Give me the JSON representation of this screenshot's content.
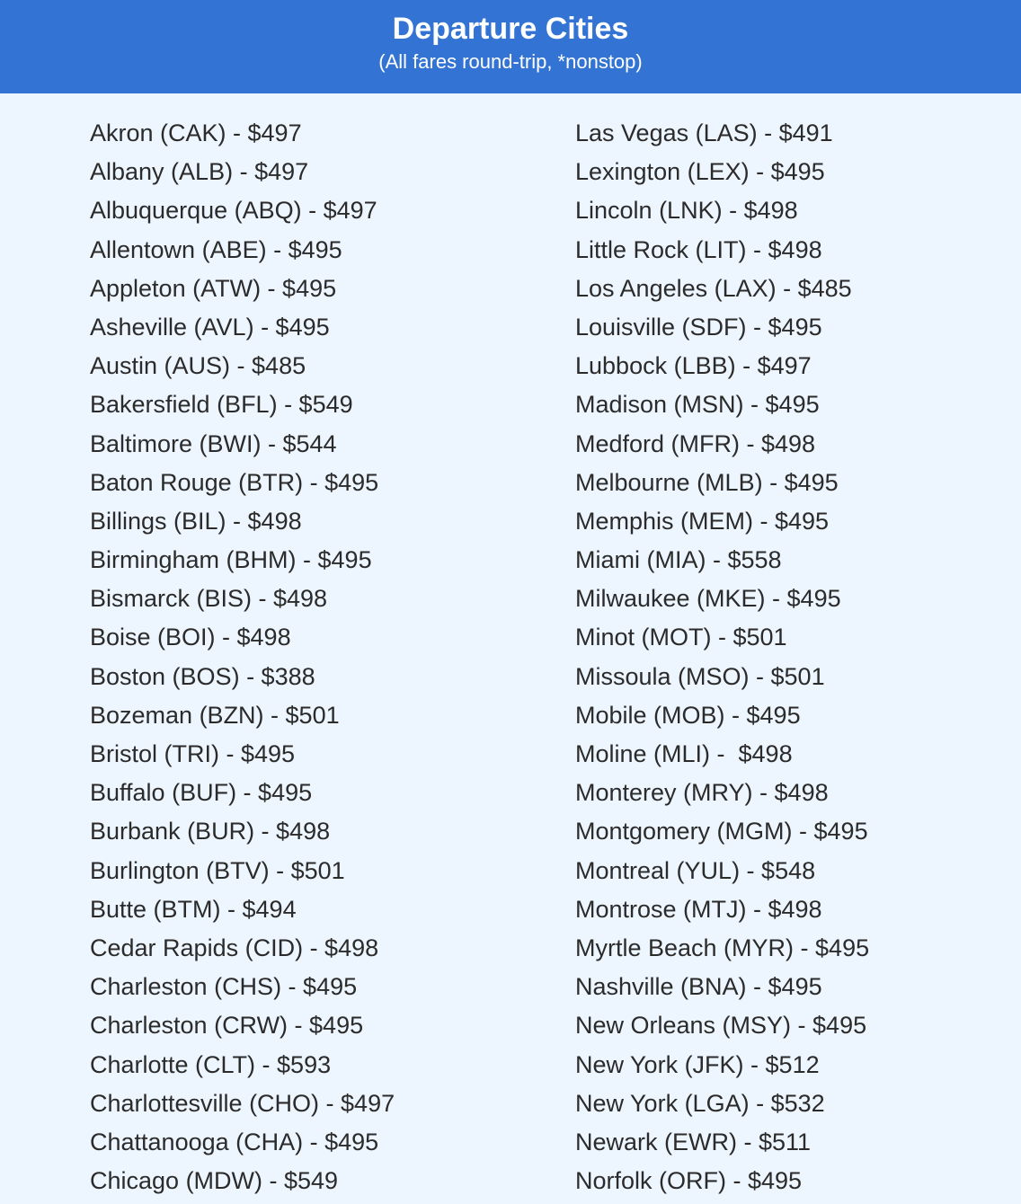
{
  "header": {
    "title": "Departure Cities",
    "subtitle": "(All fares round-trip, *nonstop)"
  },
  "colors": {
    "header_bg": "#3273d3",
    "page_bg": "#edf5fe"
  },
  "left_column": [
    "Akron (CAK) - $497",
    "Albany (ALB) - $497",
    "Albuquerque (ABQ) - $497",
    "Allentown (ABE) - $495",
    "Appleton (ATW) - $495",
    "Asheville (AVL) - $495",
    "Austin (AUS) - $485",
    "Bakersfield (BFL) - $549",
    "Baltimore (BWI) - $544",
    "Baton Rouge (BTR) - $495",
    "Billings (BIL) - $498",
    "Birmingham (BHM) - $495",
    "Bismarck (BIS) - $498",
    "Boise (BOI) - $498",
    "Boston (BOS) - $388",
    "Bozeman (BZN) - $501",
    "Bristol (TRI) - $495",
    "Buffalo (BUF) - $495",
    "Burbank (BUR) - $498",
    "Burlington (BTV) - $501",
    "Butte (BTM) - $494",
    "Cedar Rapids (CID) - $498",
    "Charleston (CHS) - $495",
    "Charleston (CRW) - $495",
    "Charlotte (CLT) - $593",
    "Charlottesville (CHO) - $497",
    "Chattanooga (CHA) - $495",
    "Chicago (MDW) - $549"
  ],
  "right_column": [
    "Las Vegas (LAS) - $491",
    "Lexington (LEX) - $495",
    "Lincoln (LNK) - $498",
    "Little Rock (LIT) - $498",
    "Los Angeles (LAX) - $485",
    "Louisville (SDF) - $495",
    "Lubbock (LBB) - $497",
    "Madison (MSN) - $495",
    "Medford (MFR) - $498",
    "Melbourne (MLB) - $495",
    "Memphis (MEM) - $495",
    "Miami (MIA) - $558",
    "Milwaukee (MKE) - $495",
    "Minot (MOT) - $501",
    "Missoula (MSO) - $501",
    "Mobile (MOB) - $495",
    "Moline (MLI) -  $498",
    "Monterey (MRY) - $498",
    "Montgomery (MGM) - $495",
    "Montreal (YUL) - $548",
    "Montrose (MTJ) - $498",
    "Myrtle Beach (MYR) - $495",
    "Nashville (BNA) - $495",
    "New Orleans (MSY) - $495",
    "New York (JFK) - $512",
    "New York (LGA) - $532",
    "Newark (EWR) - $511",
    "Norfolk (ORF) - $495"
  ]
}
